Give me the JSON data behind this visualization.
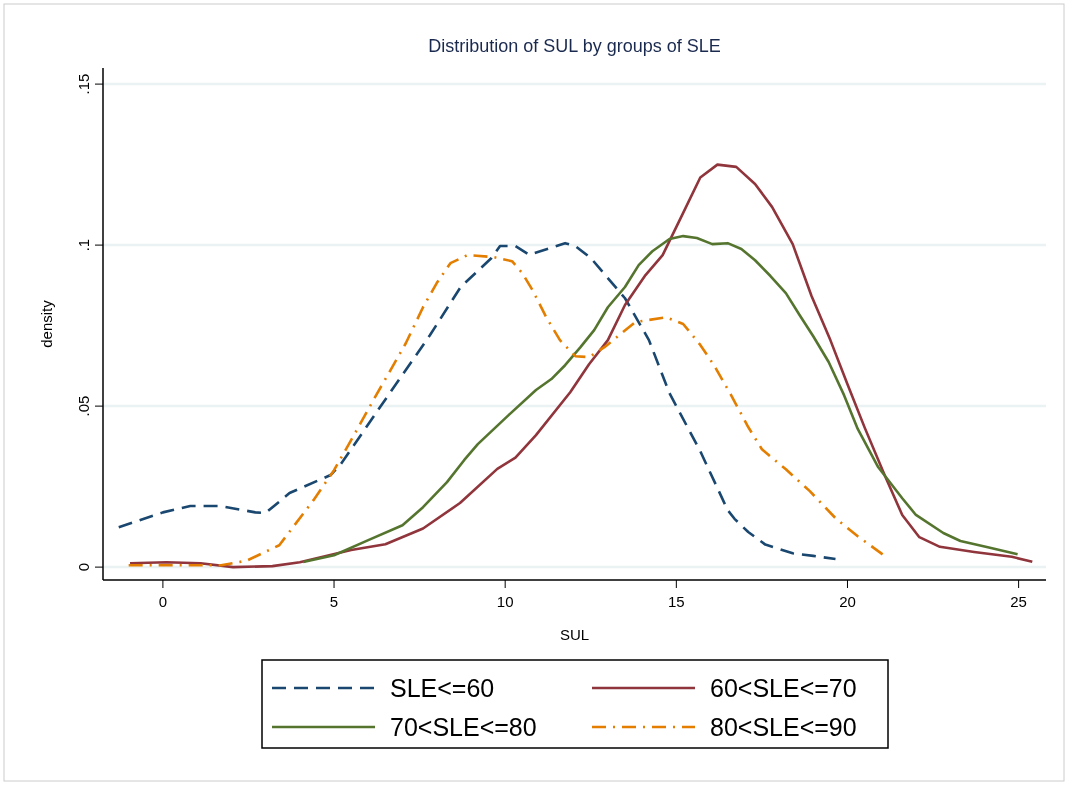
{
  "chart_data": {
    "type": "line",
    "title": "Distribution of SUL by groups of SLE",
    "xlabel": "SUL",
    "ylabel": "density",
    "xlim": [
      -1.75,
      25.8
    ],
    "ylim": [
      -0.004,
      0.155
    ],
    "xticks": [
      0,
      5,
      10,
      15,
      20,
      25
    ],
    "yticks": [
      0,
      {
        "value": 0.05,
        "label": ".05"
      },
      {
        "value": 0.1,
        "label": ".1"
      },
      {
        "value": 0.15,
        "label": ".15"
      }
    ],
    "grid": "y",
    "legend": "bottom",
    "marker": "none",
    "series": [
      {
        "name": "SLE<=60",
        "color": "#1a476f",
        "line_style": "dashed",
        "x": [
          -1.29,
          0,
          0.8,
          1.67,
          2.7,
          3.0,
          3.7,
          4.9,
          5.2,
          6.3,
          7.8,
          8.7,
          9.6,
          9.85,
          10.3,
          10.7,
          11.0,
          11.75,
          12.05,
          12.5,
          13.5,
          14.2,
          14.8,
          15.7,
          16.5,
          16.7,
          17.1,
          17.6,
          18.4,
          19.0,
          19.65
        ],
        "values": [
          0.0124,
          0.017,
          0.019,
          0.019,
          0.017,
          0.0168,
          0.023,
          0.0286,
          0.032,
          0.049,
          0.072,
          0.087,
          0.096,
          0.0997,
          0.0997,
          0.097,
          0.098,
          0.1006,
          0.0997,
          0.096,
          0.0835,
          0.0705,
          0.054,
          0.036,
          0.0177,
          0.015,
          0.0109,
          0.007,
          0.0043,
          0.0035,
          0.0025
        ]
      },
      {
        "name": "60<SLE<=70",
        "color": "#90353b",
        "line_style": "solid",
        "x": [
          -0.96,
          0.1,
          1.1,
          2.05,
          3.2,
          4.0,
          5.5,
          6.5,
          7.6,
          8.68,
          9.77,
          10.3,
          10.9,
          11.9,
          12.45,
          13.0,
          13.5,
          14.1,
          14.6,
          15.2,
          15.7,
          16.2,
          16.75,
          17.3,
          17.8,
          18.4,
          18.95,
          19.5,
          20.0,
          20.5,
          21.1,
          21.6,
          22.1,
          22.7,
          23.7,
          24.8,
          25.4
        ],
        "values": [
          0.0012,
          0.0015,
          0.0012,
          0.0,
          0.0003,
          0.0015,
          0.0053,
          0.0071,
          0.012,
          0.0199,
          0.0305,
          0.034,
          0.041,
          0.0543,
          0.063,
          0.0705,
          0.0814,
          0.0907,
          0.0969,
          0.11,
          0.121,
          0.125,
          0.1243,
          0.119,
          0.1118,
          0.1003,
          0.0842,
          0.0705,
          0.0568,
          0.0434,
          0.0282,
          0.0162,
          0.0093,
          0.0063,
          0.0047,
          0.0032,
          0.0017
        ]
      },
      {
        "name": "70<SLE<=80",
        "color": "#55752f",
        "line_style": "solid",
        "x": [
          4.1,
          5.0,
          6.0,
          7.0,
          7.6,
          8.3,
          8.8,
          9.2,
          10.1,
          10.9,
          11.35,
          11.75,
          12.2,
          12.6,
          13.0,
          13.5,
          13.9,
          14.3,
          14.8,
          15.2,
          15.6,
          16.05,
          16.5,
          16.9,
          17.3,
          17.75,
          18.2,
          18.6,
          19.0,
          19.45,
          19.9,
          20.3,
          20.9,
          21.6,
          22.0,
          22.8,
          23.3,
          24.1,
          24.97
        ],
        "values": [
          0.0016,
          0.0037,
          0.0084,
          0.013,
          0.0186,
          0.0264,
          0.0332,
          0.0382,
          0.0472,
          0.055,
          0.0584,
          0.0627,
          0.0683,
          0.0736,
          0.0807,
          0.087,
          0.0938,
          0.0981,
          0.1019,
          0.1028,
          0.1022,
          0.1003,
          0.1006,
          0.0988,
          0.0953,
          0.0904,
          0.0851,
          0.0783,
          0.0717,
          0.0637,
          0.0534,
          0.0429,
          0.031,
          0.0214,
          0.0162,
          0.0106,
          0.0081,
          0.0062,
          0.004
        ]
      },
      {
        "name": "80<SLE<=90",
        "color": "#e37e00",
        "line_style": "dashdot",
        "x": [
          -1.0,
          1.1,
          1.7,
          2.45,
          3.4,
          3.8,
          4.4,
          5.0,
          5.55,
          6.15,
          6.7,
          7.1,
          7.6,
          8.0,
          8.4,
          8.9,
          9.65,
          10.2,
          10.5,
          10.8,
          11.2,
          11.6,
          12.05,
          12.45,
          12.9,
          13.8,
          14.7,
          15.2,
          15.7,
          16.1,
          16.6,
          17.1,
          17.5,
          18.2,
          18.9,
          19.65,
          20.3,
          21.1
        ],
        "values": [
          0.0006,
          0.0006,
          0.0006,
          0.002,
          0.0068,
          0.0124,
          0.0208,
          0.0301,
          0.0404,
          0.0519,
          0.0621,
          0.0696,
          0.0807,
          0.0882,
          0.0944,
          0.0969,
          0.0963,
          0.095,
          0.0913,
          0.086,
          0.0776,
          0.0705,
          0.0655,
          0.0652,
          0.0683,
          0.0761,
          0.0776,
          0.0755,
          0.069,
          0.0627,
          0.0534,
          0.0435,
          0.0366,
          0.0304,
          0.0236,
          0.0152,
          0.0096,
          0.0034
        ]
      }
    ]
  }
}
